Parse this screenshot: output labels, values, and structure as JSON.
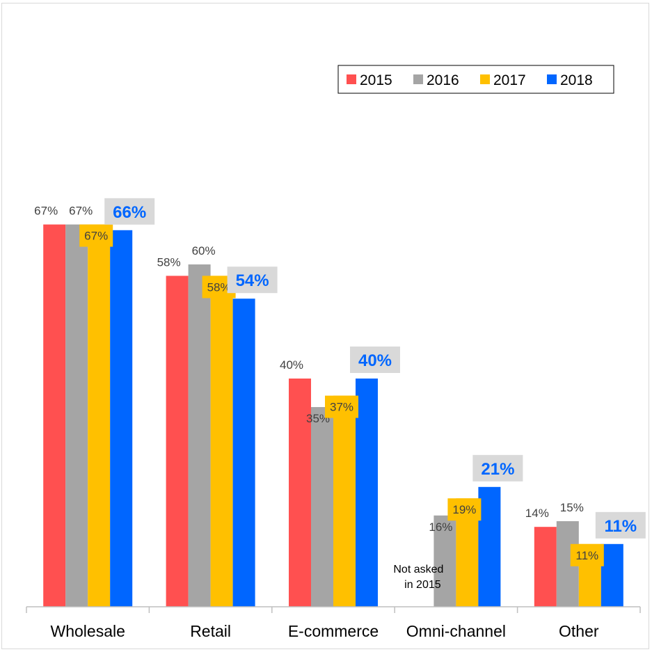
{
  "chart_data": {
    "type": "bar",
    "categories": [
      "Wholesale",
      "Retail",
      "E-commerce",
      "Omni-channel",
      "Other"
    ],
    "series": [
      {
        "name": "2015",
        "color": "#ff5050",
        "values": [
          67,
          58,
          40,
          null,
          14
        ],
        "labels": [
          "67%",
          "58%",
          "40%",
          "",
          "14%"
        ]
      },
      {
        "name": "2016",
        "color": "#a5a5a5",
        "values": [
          67,
          60,
          35,
          16,
          15
        ],
        "labels": [
          "67%",
          "60%",
          "35%",
          "16%",
          "15%"
        ]
      },
      {
        "name": "2017",
        "color": "#ffc000",
        "values": [
          67,
          58,
          37,
          19,
          11
        ],
        "labels": [
          "67%",
          "58%",
          "37%",
          "19%",
          "11%"
        ]
      },
      {
        "name": "2018",
        "color": "#0066ff",
        "values": [
          66,
          54,
          40,
          21,
          11
        ],
        "labels": [
          "66%",
          "54%",
          "40%",
          "21%",
          "11%"
        ]
      }
    ],
    "annotation": {
      "category": "Omni-channel",
      "lines": [
        "Not asked",
        "in 2015"
      ]
    },
    "ylim": [
      0,
      100
    ],
    "legend_position": "top-right",
    "grid": false,
    "title": "",
    "xlabel": "",
    "ylabel": ""
  }
}
